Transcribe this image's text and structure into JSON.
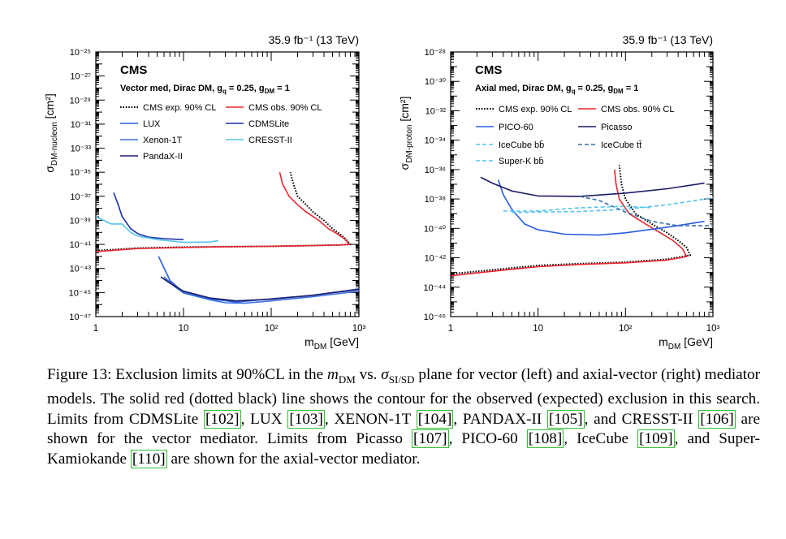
{
  "chart_data": [
    {
      "type": "line",
      "lumi_label": "35.9 fb⁻¹ (13 TeV)",
      "title": "CMS",
      "subtitle": "Vector med, Dirac DM, g_q = 0.25, g_DM = 1",
      "xlabel": "m_DM [GeV]",
      "ylabel": "σ^SI_DM-nucleon [cm²]",
      "x_scale": "log",
      "y_scale": "log",
      "xlim": [
        1,
        1000
      ],
      "ylim": [
        1e-47,
        1e-25
      ],
      "x_ticks": [
        1,
        10,
        100,
        1000
      ],
      "x_tick_labels": [
        "1",
        "10",
        "10²",
        "10³"
      ],
      "y_ticks": [
        1e-25,
        1e-27,
        1e-29,
        1e-31,
        1e-33,
        1e-35,
        1e-37,
        1e-39,
        1e-41,
        1e-43,
        1e-45,
        1e-47
      ],
      "y_tick_labels": [
        "10⁻²⁵",
        "10⁻²⁷",
        "10⁻²⁹",
        "10⁻³¹",
        "10⁻³³",
        "10⁻³⁵",
        "10⁻³⁷",
        "10⁻³⁹",
        "10⁻⁴¹",
        "10⁻⁴³",
        "10⁻⁴⁵",
        "10⁻⁴⁷"
      ],
      "legend": "top-left",
      "series": [
        {
          "name": "CMS exp. 90% CL",
          "color": "#000000",
          "style": "dotted",
          "points": [
            [
              1,
              3e-42
            ],
            [
              3,
              5e-42
            ],
            [
              10,
              6e-42
            ],
            [
              30,
              6.5e-42
            ],
            [
              100,
              7e-42
            ],
            [
              300,
              8e-42
            ],
            [
              600,
              9e-42
            ],
            [
              800,
              1e-41
            ],
            [
              700,
              3e-41
            ],
            [
              600,
              8e-41
            ],
            [
              500,
              2e-40
            ],
            [
              400,
              1e-39
            ],
            [
              300,
              5e-39
            ],
            [
              250,
              2e-38
            ],
            [
              200,
              1e-37
            ],
            [
              180,
              1e-36
            ],
            [
              165,
              1e-35
            ]
          ]
        },
        {
          "name": "CMS obs. 90% CL",
          "color": "#e8262f",
          "style": "solid",
          "points": [
            [
              1,
              2.5e-42
            ],
            [
              3,
              4.5e-42
            ],
            [
              10,
              5.5e-42
            ],
            [
              30,
              6.5e-42
            ],
            [
              100,
              7e-42
            ],
            [
              300,
              8e-42
            ],
            [
              600,
              9e-42
            ],
            [
              780,
              1e-41
            ],
            [
              680,
              3e-41
            ],
            [
              560,
              8e-41
            ],
            [
              450,
              2e-40
            ],
            [
              350,
              1e-39
            ],
            [
              250,
              5e-39
            ],
            [
              200,
              2e-38
            ],
            [
              160,
              1e-37
            ],
            [
              135,
              1e-36
            ],
            [
              125,
              1e-35
            ]
          ]
        },
        {
          "name": "LUX",
          "color": "#2a5ee0",
          "style": "solid",
          "points": [
            [
              5.2,
              1e-42
            ],
            [
              7,
              1e-44
            ],
            [
              10,
              1e-45
            ],
            [
              20,
              3e-46
            ],
            [
              40,
              1.6e-46
            ],
            [
              100,
              3e-46
            ],
            [
              300,
              6e-46
            ],
            [
              1000,
              2e-45
            ]
          ]
        },
        {
          "name": "CDMSLite",
          "color": "#1a2fa8",
          "style": "solid",
          "points": [
            [
              1.6,
              2e-37
            ],
            [
              1.8,
              2e-38
            ],
            [
              2,
              2e-39
            ],
            [
              2.5,
              2e-40
            ],
            [
              3,
              8e-41
            ],
            [
              4,
              4e-41
            ],
            [
              6,
              3e-41
            ],
            [
              10,
              2.5e-41
            ]
          ]
        },
        {
          "name": "Xenon-1T",
          "color": "#3a6fe6",
          "style": "solid",
          "points": [
            [
              6,
              2e-44
            ],
            [
              8,
              3e-45
            ],
            [
              10,
              9e-46
            ],
            [
              20,
              2.5e-46
            ],
            [
              30,
              1.4e-46
            ],
            [
              50,
              1.3e-46
            ],
            [
              100,
              2e-46
            ],
            [
              300,
              4.5e-46
            ],
            [
              1000,
              1.3e-45
            ]
          ]
        },
        {
          "name": "CRESST-II",
          "color": "#56c3ea",
          "style": "solid",
          "points": [
            [
              1,
              2e-39
            ],
            [
              1.5,
              5e-40
            ],
            [
              2,
              5e-40
            ],
            [
              2.5,
              1e-40
            ],
            [
              3,
              5e-41
            ],
            [
              5,
              2.5e-41
            ],
            [
              10,
              1.5e-41
            ],
            [
              20,
              1.6e-41
            ],
            [
              25,
              2e-41
            ]
          ]
        },
        {
          "name": "PandaX-II",
          "color": "#1c1c66",
          "style": "solid",
          "points": [
            [
              5.5,
              2e-44
            ],
            [
              7,
              6e-45
            ],
            [
              10,
              1.3e-45
            ],
            [
              20,
              3.5e-46
            ],
            [
              40,
              2e-46
            ],
            [
              100,
              2.8e-46
            ],
            [
              300,
              6e-46
            ],
            [
              1000,
              1.8e-45
            ]
          ]
        }
      ]
    },
    {
      "type": "line",
      "lumi_label": "35.9 fb⁻¹ (13 TeV)",
      "title": "CMS",
      "subtitle": "Axial med, Dirac DM, g_q = 0.25, g_DM = 1",
      "xlabel": "m_DM [GeV]",
      "ylabel": "σ^SD_DM-proton [cm²]",
      "x_scale": "log",
      "y_scale": "log",
      "xlim": [
        1,
        1000
      ],
      "ylim": [
        1e-46,
        1e-28
      ],
      "x_ticks": [
        1,
        10,
        100,
        1000
      ],
      "x_tick_labels": [
        "1",
        "10",
        "10²",
        "10³"
      ],
      "y_ticks": [
        1e-28,
        1e-30,
        1e-32,
        1e-34,
        1e-36,
        1e-38,
        1e-40,
        1e-42,
        1e-44,
        1e-46
      ],
      "y_tick_labels": [
        "10⁻²⁸",
        "10⁻³⁰",
        "10⁻³²",
        "10⁻³⁴",
        "10⁻³⁶",
        "10⁻³⁸",
        "10⁻⁴⁰",
        "10⁻⁴²",
        "10⁻⁴⁴",
        "10⁻⁴⁶"
      ],
      "legend": "top-left",
      "series": [
        {
          "name": "CMS exp. 90% CL",
          "color": "#000000",
          "style": "dotted",
          "points": [
            [
              1,
              8e-44
            ],
            [
              3,
              1.5e-43
            ],
            [
              10,
              3e-43
            ],
            [
              30,
              4e-43
            ],
            [
              100,
              5e-43
            ],
            [
              300,
              8e-43
            ],
            [
              550,
              1.5e-42
            ],
            [
              500,
              5e-42
            ],
            [
              400,
              1.5e-41
            ],
            [
              300,
              5e-41
            ],
            [
              200,
              2e-40
            ],
            [
              130,
              1e-39
            ],
            [
              100,
              1e-38
            ],
            [
              90,
              1e-37
            ],
            [
              85,
              2e-36
            ]
          ]
        },
        {
          "name": "CMS obs. 90% CL",
          "color": "#e8262f",
          "style": "solid",
          "points": [
            [
              1,
              6e-44
            ],
            [
              3,
              1.2e-43
            ],
            [
              10,
              2.5e-43
            ],
            [
              30,
              3.5e-43
            ],
            [
              100,
              4.5e-43
            ],
            [
              300,
              7e-43
            ],
            [
              500,
              1.2e-42
            ],
            [
              450,
              4e-42
            ],
            [
              350,
              1.5e-41
            ],
            [
              250,
              5e-41
            ],
            [
              170,
              2e-40
            ],
            [
              110,
              1e-39
            ],
            [
              85,
              1e-38
            ],
            [
              78,
              1e-37
            ],
            [
              75,
              1e-36
            ]
          ]
        },
        {
          "name": "PICO-60",
          "color": "#2a5ee0",
          "style": "solid",
          "points": [
            [
              3.5,
              2e-37
            ],
            [
              4,
              2e-38
            ],
            [
              5,
              2e-39
            ],
            [
              7,
              2e-40
            ],
            [
              10,
              8e-41
            ],
            [
              20,
              4e-41
            ],
            [
              50,
              3.5e-41
            ],
            [
              100,
              5e-41
            ],
            [
              300,
              1.2e-40
            ],
            [
              800,
              3e-40
            ]
          ]
        },
        {
          "name": "Picasso",
          "color": "#1c1c66",
          "style": "solid",
          "points": [
            [
              2.2,
              3e-37
            ],
            [
              3,
              1.2e-37
            ],
            [
              5,
              3.5e-38
            ],
            [
              10,
              1.6e-38
            ],
            [
              30,
              1.5e-38
            ],
            [
              100,
              2.5e-38
            ],
            [
              300,
              5e-38
            ],
            [
              800,
              1.2e-37
            ]
          ]
        },
        {
          "name": "IceCube bb̄",
          "color": "#56c3ea",
          "style": "dashed",
          "points": [
            [
              5,
              1.2e-39
            ],
            [
              10,
              1.3e-39
            ],
            [
              30,
              1.4e-39
            ],
            [
              100,
              2e-39
            ],
            [
              300,
              4e-39
            ],
            [
              1000,
              1.2e-38
            ]
          ]
        },
        {
          "name": "IceCube tt̄",
          "color": "#3a6fa8",
          "style": "dashed",
          "points": [
            [
              30,
              1.5e-38
            ],
            [
              50,
              8e-39
            ],
            [
              100,
              1.3e-39
            ],
            [
              200,
              3e-40
            ],
            [
              400,
              1.5e-40
            ],
            [
              1000,
              1.5e-40
            ]
          ]
        },
        {
          "name": "Super-K bb̄",
          "color": "#56c3ea",
          "style": "dashed",
          "points": [
            [
              4,
              1.5e-39
            ],
            [
              10,
              1.5e-39
            ],
            [
              30,
              2.5e-39
            ],
            [
              100,
              3.2e-39
            ],
            [
              200,
              2.5e-39
            ]
          ]
        }
      ]
    }
  ],
  "caption": {
    "label": "Figure 13:",
    "p1": " Exclusion limits at 90%CL in the ",
    "m": "m",
    "m_sub": "DM",
    "p2": " vs. ",
    "sigma": "σ",
    "sigma_sub": "SI/SD",
    "p3": " plane for vector (left) and axial-vector (right) mediator models. The solid red (dotted black) line shows the contour for the observed (expected) exclusion in this search. Limits from CDMSLite ",
    "r102": "[102]",
    "p4": ", LUX ",
    "r103": "[103]",
    "p5": ", XENON-1T ",
    "r104": "[104]",
    "p6": ", PANDAX-II ",
    "r105": "[105]",
    "p7": ", and CRESST-II ",
    "r106": "[106]",
    "p8": " are shown for the vector mediator. Limits from Picasso ",
    "r107": "[107]",
    "p9": ", PICO-60 ",
    "r108": "[108]",
    "p10": ", IceCube ",
    "r109": "[109]",
    "p11": ", and Super-Kamiokande ",
    "r110": "[110]",
    "p12": " are shown for the axial-vector mediator."
  }
}
